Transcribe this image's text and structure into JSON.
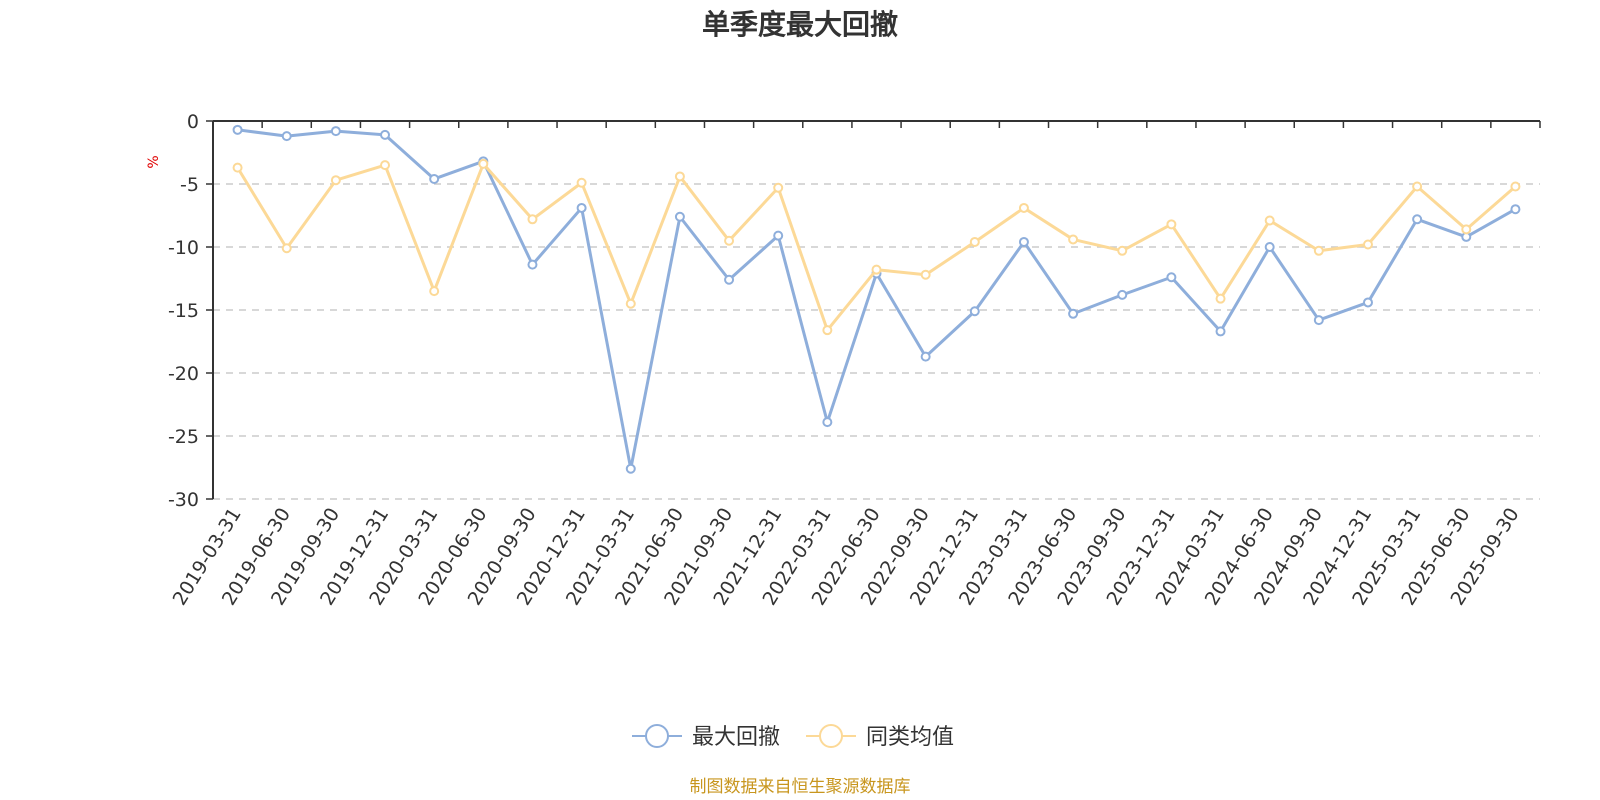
{
  "colors": {
    "series1": "#8eaedb",
    "series2": "#fcd997",
    "source": "#c8961e",
    "ylabel": "#e00000"
  },
  "footer": {
    "source": "制图数据来自恒生聚源数据库"
  },
  "chart_data": {
    "type": "line",
    "title": "单季度最大回撤",
    "xlabel": "",
    "ylabel": "%",
    "ylim": [
      -30,
      0
    ],
    "yticks": [
      0,
      -5,
      -10,
      -15,
      -20,
      -25,
      -30
    ],
    "grid": true,
    "legend": "bottom-center",
    "categories": [
      "2019-03-31",
      "2019-06-30",
      "2019-09-30",
      "2019-12-31",
      "2020-03-31",
      "2020-06-30",
      "2020-09-30",
      "2020-12-31",
      "2021-03-31",
      "2021-06-30",
      "2021-09-30",
      "2021-12-31",
      "2022-03-31",
      "2022-06-30",
      "2022-09-30",
      "2022-12-31",
      "2023-03-31",
      "2023-06-30",
      "2023-09-30",
      "2023-12-31",
      "2024-03-31",
      "2024-06-30",
      "2024-09-30",
      "2024-12-31",
      "2025-03-31",
      "2025-06-30",
      "2025-09-30"
    ],
    "series": [
      {
        "name": "最大回撤",
        "color": "#8eaedb",
        "values": [
          -0.7,
          -1.2,
          -0.8,
          -1.1,
          -4.6,
          -3.2,
          -11.4,
          -6.9,
          -27.6,
          -7.6,
          -12.6,
          -9.1,
          -23.9,
          -12.1,
          -18.7,
          -15.1,
          -9.6,
          -15.3,
          -13.8,
          -12.4,
          -16.7,
          -10.0,
          -15.8,
          -14.4,
          -7.8,
          -9.2,
          -7.0
        ]
      },
      {
        "name": "同类均值",
        "color": "#fcd997",
        "values": [
          -3.7,
          -10.1,
          -4.7,
          -3.5,
          -13.5,
          -3.4,
          -7.8,
          -4.9,
          -14.5,
          -4.4,
          -9.5,
          -5.3,
          -16.6,
          -11.8,
          -12.2,
          -9.6,
          -6.9,
          -9.4,
          -10.3,
          -8.2,
          -14.1,
          -7.9,
          -10.3,
          -9.8,
          -5.2,
          -8.6,
          -5.2
        ]
      }
    ]
  }
}
